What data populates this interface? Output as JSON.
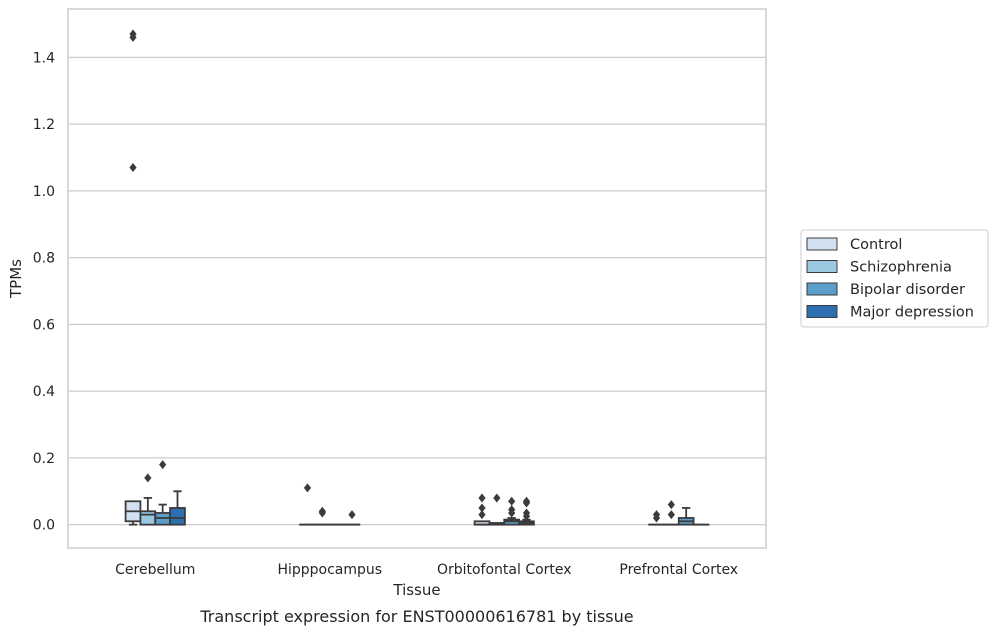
{
  "caption": "Transcript expression for ENST00000616781 by tissue",
  "chart_data": {
    "type": "box",
    "xlabel": "Tissue",
    "ylabel": "TPMs",
    "ylim": [
      -0.07,
      1.545
    ],
    "yticks": [
      "0.0",
      "0.2",
      "0.4",
      "0.6",
      "0.8",
      "1.0",
      "1.2",
      "1.4"
    ],
    "grid": "horizontal",
    "legend_position": "right",
    "categories": [
      "Cerebellum",
      "Hipppocampus",
      "Orbitofontal Cortex",
      "Prefrontal Cortex"
    ],
    "series": [
      {
        "name": "Control",
        "color": "#d1e1f2",
        "boxes": [
          {
            "q1": 0.01,
            "median": 0.04,
            "q3": 0.07,
            "whisker_low": 0.0,
            "whisker_high": 0.07,
            "outliers": [
              1.47,
              1.46,
              1.07
            ]
          },
          {
            "q1": 0.0,
            "median": 0.0,
            "q3": 0.0,
            "whisker_low": 0.0,
            "whisker_high": 0.0,
            "outliers": [
              0.11
            ]
          },
          {
            "q1": 0.0,
            "median": 0.0,
            "q3": 0.01,
            "whisker_low": 0.0,
            "whisker_high": 0.01,
            "outliers": [
              0.08,
              0.05,
              0.03
            ]
          },
          {
            "q1": 0.0,
            "median": 0.0,
            "q3": 0.0,
            "whisker_low": 0.0,
            "whisker_high": 0.0,
            "outliers": [
              0.03,
              0.02
            ]
          }
        ]
      },
      {
        "name": "Schizophrenia",
        "color": "#9ac8e0",
        "boxes": [
          {
            "q1": 0.0,
            "median": 0.03,
            "q3": 0.04,
            "whisker_low": 0.0,
            "whisker_high": 0.08,
            "outliers": [
              0.14
            ]
          },
          {
            "q1": 0.0,
            "median": 0.0,
            "q3": 0.0,
            "whisker_low": 0.0,
            "whisker_high": 0.0,
            "outliers": [
              0.04,
              0.035
            ]
          },
          {
            "q1": 0.0,
            "median": 0.0,
            "q3": 0.005,
            "whisker_low": 0.0,
            "whisker_high": 0.005,
            "outliers": [
              0.08
            ]
          },
          {
            "q1": 0.0,
            "median": 0.0,
            "q3": 0.0,
            "whisker_low": 0.0,
            "whisker_high": 0.0,
            "outliers": [
              0.06,
              0.03
            ]
          }
        ]
      },
      {
        "name": "Bipolar disorder",
        "color": "#5a9ec9",
        "boxes": [
          {
            "q1": 0.0,
            "median": 0.02,
            "q3": 0.035,
            "whisker_low": 0.0,
            "whisker_high": 0.06,
            "outliers": [
              0.18
            ]
          },
          {
            "q1": 0.0,
            "median": 0.0,
            "q3": 0.0,
            "whisker_low": 0.0,
            "whisker_high": 0.0,
            "outliers": []
          },
          {
            "q1": 0.0,
            "median": 0.01,
            "q3": 0.015,
            "whisker_low": 0.0,
            "whisker_high": 0.02,
            "outliers": [
              0.07,
              0.045,
              0.035
            ]
          },
          {
            "q1": 0.0,
            "median": 0.01,
            "q3": 0.02,
            "whisker_low": 0.0,
            "whisker_high": 0.05,
            "outliers": []
          }
        ]
      },
      {
        "name": "Major depression",
        "color": "#2d6fb0",
        "boxes": [
          {
            "q1": 0.0,
            "median": 0.02,
            "q3": 0.05,
            "whisker_low": 0.0,
            "whisker_high": 0.1,
            "outliers": []
          },
          {
            "q1": 0.0,
            "median": 0.0,
            "q3": 0.0,
            "whisker_low": 0.0,
            "whisker_high": 0.0,
            "outliers": [
              0.03
            ]
          },
          {
            "q1": 0.0,
            "median": 0.005,
            "q3": 0.01,
            "whisker_low": 0.0,
            "whisker_high": 0.015,
            "outliers": [
              0.07,
              0.065,
              0.035,
              0.025
            ]
          },
          {
            "q1": 0.0,
            "median": 0.0,
            "q3": 0.0,
            "whisker_low": 0.0,
            "whisker_high": 0.0,
            "outliers": []
          }
        ]
      }
    ]
  }
}
